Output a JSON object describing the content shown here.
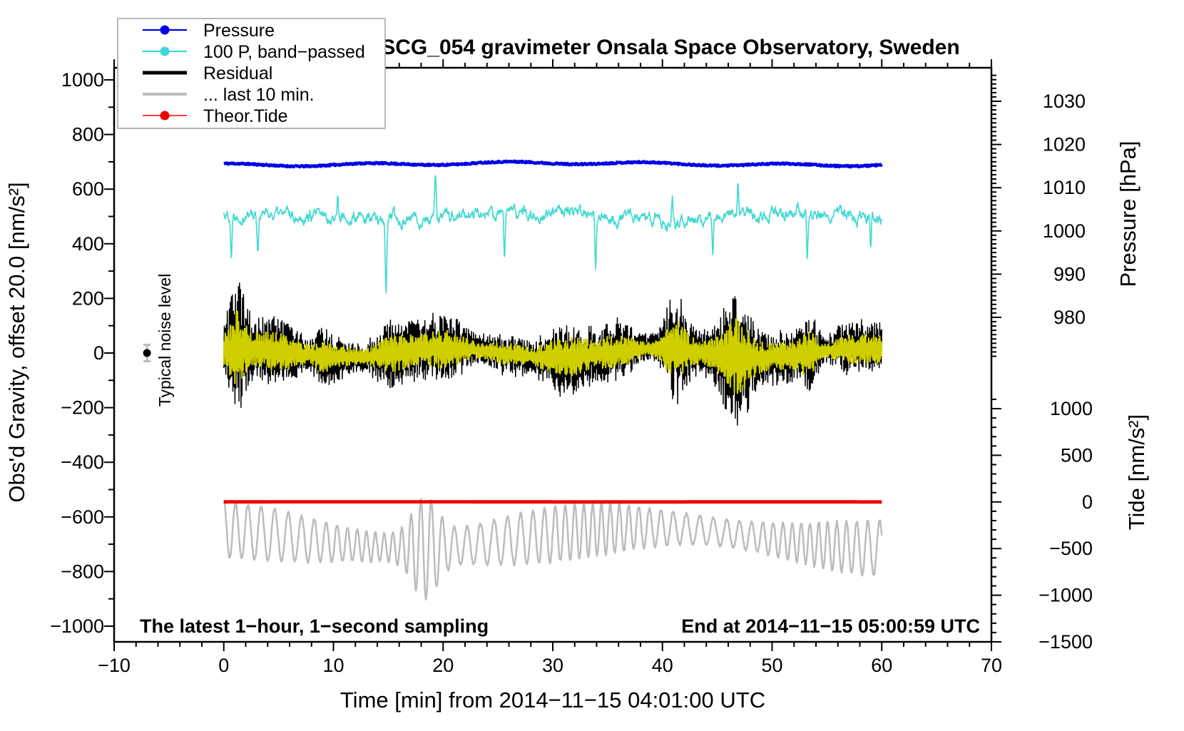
{
  "title": "SCG_054 gravimeter Onsala Space Observatory, Sweden",
  "annotations": {
    "noise_marker_label": "Typical noise level",
    "bottom_left": "The latest 1−hour, 1−second sampling",
    "bottom_right": "End at 2014−11−15 05:00:59 UTC"
  },
  "legend": {
    "items": [
      {
        "label": "Pressure",
        "color": "#0000e6",
        "line_width": 2.2,
        "marker": true
      },
      {
        "label": "100 P, band−passed",
        "color": "#3fd9d2",
        "line_width": 2.2,
        "marker": true
      },
      {
        "label": "Residual",
        "color": "#000000",
        "line_width": 5,
        "marker": false
      },
      {
        "label": "... last 10 min.",
        "color": "#bcbcbc",
        "line_width": 4,
        "marker": false
      },
      {
        "label": "Theor.Tide",
        "color": "#ee0000",
        "line_width": 1.6,
        "marker": true
      }
    ]
  },
  "axes": {
    "x": {
      "label": "Time [min] from 2014−11−15 04:01:00 UTC",
      "range": [
        -10,
        70
      ],
      "major_values": [
        -10,
        0,
        10,
        20,
        30,
        40,
        50,
        60,
        70
      ],
      "major_labels": [
        "−10",
        "0",
        "10",
        "20",
        "30",
        "40",
        "50",
        "60",
        "70"
      ],
      "minor_step": 2
    },
    "gravity": {
      "label": "Obs'd Gravity, offset 20.0 [nm/s²]",
      "range": [
        -1000,
        1000
      ],
      "major_values": [
        1000,
        800,
        600,
        400,
        200,
        0,
        -200,
        -400,
        -600,
        -800,
        -1000
      ],
      "major_labels": [
        "1000",
        "800",
        "600",
        "400",
        "200",
        "0",
        "−200",
        "−400",
        "−600",
        "−800",
        "−1000"
      ],
      "minor_step": 100
    },
    "pressure": {
      "label": "Pressure [hPa]",
      "major_values": [
        1030,
        1020,
        1010,
        1000,
        990,
        980
      ],
      "major_labels": [
        "1030",
        "1020",
        "1010",
        "1000",
        "990",
        "980"
      ],
      "minor_step": 1,
      "minor_range": [
        970,
        1036
      ]
    },
    "tide": {
      "label": "Tide [nm/s²]",
      "major_values": [
        1000,
        500,
        0,
        -500,
        -1000,
        -1500
      ],
      "major_labels": [
        "1000",
        "500",
        "0",
        "−500",
        "−1000",
        "−1500"
      ],
      "minor_step": 100,
      "minor_range": [
        -1500,
        1100
      ]
    }
  },
  "noise_marker": {
    "t_min": -7,
    "gravity_value": 0,
    "error_half_range": 30
  },
  "chart_data": {
    "type": "line",
    "x_unit": "minutes",
    "x_range": [
      0,
      60
    ],
    "grid": false,
    "legend_position": "top-left",
    "series": [
      {
        "name": "Pressure",
        "type": "flat",
        "axis": "pressure",
        "color": "#0000e6",
        "baseline": 1015.5,
        "noise": 0.35,
        "seed": 11,
        "description": "barometric pressure, nearly constant ~1015.5 hPa over the hour"
      },
      {
        "name": "100 P, band-passed",
        "type": "bandnoise",
        "axis": "gravity",
        "color": "#3fd9d2",
        "baseline": 500,
        "amplitude": 40,
        "seed": 22,
        "spikes": [
          {
            "t": 0.7,
            "dv": -150
          },
          {
            "t": 3.1,
            "dv": -130
          },
          {
            "t": 10.4,
            "dv": 90
          },
          {
            "t": 14.8,
            "dv": -255
          },
          {
            "t": 19.3,
            "dv": 150
          },
          {
            "t": 25.6,
            "dv": -165
          },
          {
            "t": 33.9,
            "dv": -180
          },
          {
            "t": 40.9,
            "dv": 95
          },
          {
            "t": 44.6,
            "dv": -120
          },
          {
            "t": 46.9,
            "dv": 110
          },
          {
            "t": 53.2,
            "dv": -175
          },
          {
            "t": 59.0,
            "dv": -120
          }
        ]
      },
      {
        "name": "Residual",
        "type": "residual",
        "axis": "gravity",
        "color": "#000000",
        "baseline": 0,
        "amplitude": 112,
        "seed": 33,
        "max_excursion": 390,
        "bursts": [
          {
            "t": 1.3,
            "gain": 1.5,
            "width": 0.8
          },
          {
            "t": 9.0,
            "gain": 0.5,
            "width": 0.8
          },
          {
            "t": 41.0,
            "gain": 1.6,
            "width": 1.2
          },
          {
            "t": 46.8,
            "gain": 0.8,
            "width": 1.5
          },
          {
            "t": 53.5,
            "gain": 1.9,
            "width": 0.9
          }
        ]
      },
      {
        "name": "Residual band overlay",
        "type": "overlay",
        "axis": "gravity",
        "color": "#cfcf00",
        "baseline": 0,
        "amplitude_factor": 0.55,
        "seed": 44
      },
      {
        "name": "Theor.Tide",
        "type": "tideflat",
        "axis": "tide",
        "color": "#ee0000",
        "baseline": 0,
        "amplitude": 2,
        "seed": 66,
        "description": "theoretical tide ~0 nm/s2, essentially flat during this hour"
      },
      {
        "name": "... last 10 min.",
        "type": "last10",
        "axis": "tide",
        "color": "#bcbcbc",
        "baseline": -385,
        "amplitude": 268,
        "carrier_period_min": 1.02,
        "seed": 55,
        "burst": {
          "t": 18.3,
          "width": 1.6,
          "gain": 2.6
        },
        "extremes": {
          "max": 660,
          "min": -1450
        }
      }
    ]
  }
}
